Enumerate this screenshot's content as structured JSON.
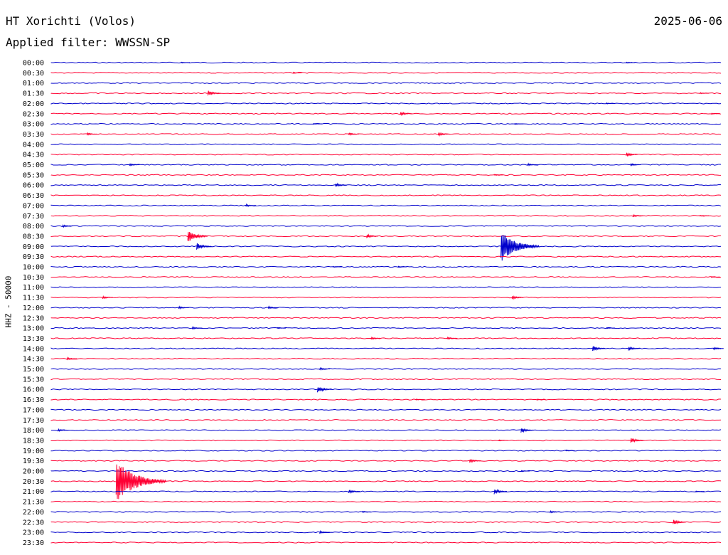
{
  "header": {
    "station": "HT Xorichti (Volos)",
    "date": "2025-06-06",
    "filter": "Applied filter: WWSSN-SP",
    "channel_label": "HHZ - 50000"
  },
  "colors": {
    "even_trace": "#0000cc",
    "odd_trace": "#ff0033"
  },
  "chart_data": {
    "type": "line",
    "title": "HT Xorichti (Volos)",
    "subtitle": "Applied filter: WWSSN-SP",
    "ylabel": "HHZ - 50000",
    "xlabel": "",
    "grid": false,
    "x_range_minutes": [
      0,
      30
    ],
    "rows": [
      {
        "time": "00:00",
        "events": [
          {
            "min": 5.8,
            "amp": 1
          },
          {
            "min": 25.7,
            "amp": 1
          }
        ]
      },
      {
        "time": "00:30",
        "events": [
          {
            "min": 10.8,
            "amp": 1
          }
        ]
      },
      {
        "time": "01:00",
        "events": []
      },
      {
        "time": "01:30",
        "events": [
          {
            "min": 7.0,
            "amp": 4
          },
          {
            "min": 29.0,
            "amp": 1
          }
        ]
      },
      {
        "time": "02:00",
        "events": [
          {
            "min": 24.8,
            "amp": 1
          }
        ]
      },
      {
        "time": "02:30",
        "events": [
          {
            "min": 15.6,
            "amp": 3
          },
          {
            "min": 29.5,
            "amp": 1
          }
        ]
      },
      {
        "time": "03:00",
        "events": [
          {
            "min": 11.7,
            "amp": 1
          },
          {
            "min": 20.7,
            "amp": 1
          }
        ]
      },
      {
        "time": "03:30",
        "events": [
          {
            "min": 1.6,
            "amp": 2
          },
          {
            "min": 13.3,
            "amp": 2
          },
          {
            "min": 17.3,
            "amp": 3
          }
        ]
      },
      {
        "time": "04:00",
        "events": []
      },
      {
        "time": "04:30",
        "events": [
          {
            "min": 25.7,
            "amp": 3
          }
        ]
      },
      {
        "time": "05:00",
        "events": [
          {
            "min": 3.5,
            "amp": 2
          },
          {
            "min": 21.3,
            "amp": 2
          },
          {
            "min": 25.9,
            "amp": 2
          }
        ]
      },
      {
        "time": "05:30",
        "events": [
          {
            "min": 19.8,
            "amp": 1
          }
        ]
      },
      {
        "time": "06:00",
        "events": [
          {
            "min": 12.7,
            "amp": 3
          }
        ]
      },
      {
        "time": "06:30",
        "events": []
      },
      {
        "time": "07:00",
        "events": [
          {
            "min": 8.7,
            "amp": 2
          }
        ]
      },
      {
        "time": "07:30",
        "events": [
          {
            "min": 26.0,
            "amp": 2
          },
          {
            "min": 29.0,
            "amp": 1
          }
        ]
      },
      {
        "time": "08:00",
        "events": [
          {
            "min": 0.5,
            "amp": 2
          }
        ]
      },
      {
        "time": "08:30",
        "events": [
          {
            "min": 6.1,
            "amp": 9
          },
          {
            "min": 14.1,
            "amp": 3
          }
        ]
      },
      {
        "time": "09:00",
        "events": [
          {
            "min": 6.5,
            "amp": 5
          },
          {
            "min": 20.1,
            "amp": 22
          }
        ]
      },
      {
        "time": "09:30",
        "events": []
      },
      {
        "time": "10:00",
        "events": [
          {
            "min": 12.6,
            "amp": 1
          },
          {
            "min": 15.5,
            "amp": 1
          }
        ]
      },
      {
        "time": "10:30",
        "events": [
          {
            "min": 29.5,
            "amp": 1
          }
        ]
      },
      {
        "time": "11:00",
        "events": []
      },
      {
        "time": "11:30",
        "events": [
          {
            "min": 2.3,
            "amp": 2
          },
          {
            "min": 20.6,
            "amp": 3
          }
        ]
      },
      {
        "time": "12:00",
        "events": [
          {
            "min": 5.7,
            "amp": 2
          },
          {
            "min": 9.7,
            "amp": 2
          }
        ]
      },
      {
        "time": "12:30",
        "events": []
      },
      {
        "time": "13:00",
        "events": [
          {
            "min": 6.3,
            "amp": 2
          },
          {
            "min": 10.1,
            "amp": 1
          },
          {
            "min": 24.8,
            "amp": 1
          }
        ]
      },
      {
        "time": "13:30",
        "events": [
          {
            "min": 14.3,
            "amp": 2
          },
          {
            "min": 17.7,
            "amp": 2
          }
        ]
      },
      {
        "time": "14:00",
        "events": [
          {
            "min": 24.2,
            "amp": 4
          },
          {
            "min": 25.8,
            "amp": 3
          },
          {
            "min": 29.6,
            "amp": 2
          }
        ]
      },
      {
        "time": "14:30",
        "events": [
          {
            "min": 0.7,
            "amp": 2
          }
        ]
      },
      {
        "time": "15:00",
        "events": [
          {
            "min": 12.0,
            "amp": 2
          }
        ]
      },
      {
        "time": "15:30",
        "events": []
      },
      {
        "time": "16:00",
        "events": [
          {
            "min": 11.9,
            "amp": 5
          }
        ]
      },
      {
        "time": "16:30",
        "events": [
          {
            "min": 16.3,
            "amp": 1
          },
          {
            "min": 21.7,
            "amp": 1
          }
        ]
      },
      {
        "time": "17:00",
        "events": []
      },
      {
        "time": "17:30",
        "events": []
      },
      {
        "time": "18:00",
        "events": [
          {
            "min": 0.3,
            "amp": 2
          },
          {
            "min": 21.0,
            "amp": 4
          }
        ]
      },
      {
        "time": "18:30",
        "events": [
          {
            "min": 25.9,
            "amp": 4
          },
          {
            "min": 20.0,
            "amp": 1
          }
        ]
      },
      {
        "time": "19:00",
        "events": [
          {
            "min": 23.0,
            "amp": 1
          }
        ]
      },
      {
        "time": "19:30",
        "events": [
          {
            "min": 18.7,
            "amp": 3
          }
        ]
      },
      {
        "time": "20:00",
        "events": [
          {
            "min": 21.0,
            "amp": 1
          }
        ]
      },
      {
        "time": "20:30",
        "events": [
          {
            "min": 2.9,
            "amp": 30
          }
        ]
      },
      {
        "time": "21:00",
        "events": [
          {
            "min": 13.3,
            "amp": 3
          },
          {
            "min": 19.8,
            "amp": 4
          },
          {
            "min": 28.8,
            "amp": 1
          }
        ]
      },
      {
        "time": "21:30",
        "events": []
      },
      {
        "time": "22:00",
        "events": [
          {
            "min": 13.9,
            "amp": 1
          },
          {
            "min": 22.3,
            "amp": 2
          }
        ]
      },
      {
        "time": "22:30",
        "events": [
          {
            "min": 27.8,
            "amp": 4
          }
        ]
      },
      {
        "time": "23:00",
        "events": [
          {
            "min": 12.0,
            "amp": 2
          }
        ]
      },
      {
        "time": "23:30",
        "events": []
      }
    ]
  }
}
